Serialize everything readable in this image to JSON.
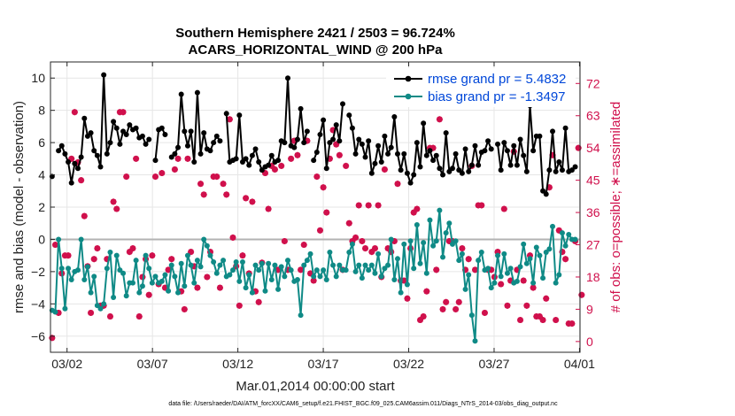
{
  "chart_data": {
    "type": "line",
    "title": [
      "Southern Hemisphere 2421 / 2503 = 96.724%",
      "ACARS_HORIZONTAL_WIND @ 200 hPa"
    ],
    "xlabel": "Mar.01,2014 00:00:00 start",
    "ylabel": "rmse and bias (model - observation)",
    "y2label": "# of obs: o=possible; ∗=assimilated",
    "footnote": "data file: /Users/raeder/DAI/ATM_forcXX/CAM6_setup/f.e21.FHIST_BGC.f09_025.CAM6assim.011/Diags_NTrS_2014-03/obs_diag_output.nc",
    "x_ticks": [
      {
        "label": "03/02",
        "x": 1
      },
      {
        "label": "03/07",
        "x": 6
      },
      {
        "label": "03/12",
        "x": 11
      },
      {
        "label": "03/17",
        "x": 16
      },
      {
        "label": "03/22",
        "x": 21
      },
      {
        "label": "03/27",
        "x": 26
      },
      {
        "label": "04/01",
        "x": 31
      }
    ],
    "xlim": [
      0.03,
      31.03
    ],
    "ylim": [
      -7,
      11
    ],
    "y_ticks": [
      -6,
      -4,
      -2,
      0,
      2,
      4,
      6,
      8,
      10
    ],
    "y_tick_labels": [
      "−6",
      "−4",
      "−2",
      "0",
      "2",
      "4",
      "6",
      "8",
      "10"
    ],
    "y2lim": [
      -3,
      78
    ],
    "y2_ticks": [
      0,
      9,
      18,
      27,
      36,
      45,
      54,
      63,
      72
    ],
    "y2_tick_labels": [
      "0",
      "9",
      "18",
      "27",
      "36",
      "45",
      "54",
      "63",
      "72"
    ],
    "zero_line": 0,
    "series": [
      {
        "name": "rmse",
        "legend": "rmse grand pr = 5.4832",
        "color": "#000000",
        "marker": "filled-circle",
        "y": [
          3.9,
          null,
          5.5,
          5.8,
          5.3,
          4.8,
          3.5,
          4.7,
          4.4,
          5.1,
          7.5,
          6.4,
          6.6,
          5.5,
          5.2,
          4.5,
          10.2,
          5.3,
          6.0,
          7.3,
          6.9,
          5.9,
          6.7,
          6.5,
          7.1,
          6.8,
          6.9,
          6.3,
          6.4,
          5.9,
          6.2,
          null,
          4.9,
          6.8,
          6.9,
          6.5,
          null,
          5.1,
          5.3,
          5.7,
          9.0,
          6.7,
          5.8,
          6.7,
          4.8,
          9.1,
          5.3,
          6.6,
          5.6,
          5.5,
          6.0,
          6.4,
          6.1,
          null,
          7.8,
          4.8,
          4.9,
          5.0,
          7.7,
          4.8,
          5.0,
          4.6,
          5.2,
          5.6,
          4.8,
          4.3,
          4.5,
          4.6,
          5.2,
          4.8,
          4.9,
          6.1,
          6.0,
          10.0,
          5.8,
          5.7,
          6.2,
          8.1,
          6.0,
          6.7,
          null,
          4.9,
          5.4,
          6.5,
          7.4,
          4.4,
          6.0,
          6.2,
          7.1,
          6.1,
          8.4,
          null,
          7.7,
          6.9,
          5.3,
          6.2,
          5.9,
          5.1,
          6.1,
          4.1,
          4.7,
          5.8,
          4.8,
          6.4,
          5.3,
          5.7,
          7.6,
          5.3,
          4.3,
          5.3,
          4.1,
          3.5,
          4.0,
          6.0,
          4.5,
          7.2,
          5.2,
          5.5,
          4.9,
          5.2,
          4.4,
          4.0,
          6.6,
          4.2,
          4.4,
          5.3,
          4.3,
          4.1,
          5.6,
          4.2,
          4.6,
          5.8,
          4.6,
          5.4,
          5.5,
          6.1,
          5.6,
          null,
          5.9,
          4.3,
          6.0,
          5.5,
          4.6,
          5.8,
          4.6,
          6.2,
          5.2,
          4.2,
          8.3,
          5.5,
          6.4,
          6.4,
          3.0,
          2.8,
          4.3,
          6.7,
          4.2,
          4.8,
          4.3,
          6.9,
          4.2,
          4.3,
          4.5,
          null
        ]
      },
      {
        "name": "bias",
        "legend": "bias grand pr = -1.3497",
        "color": "#0f8a86",
        "marker": "filled-circle",
        "y": [
          -4.4,
          -4.5,
          0.0,
          -1.8,
          -4.3,
          -1.8,
          -2.5,
          -2.0,
          -1.9,
          0.0,
          -2.5,
          -1.7,
          -3.3,
          -2.3,
          -4.1,
          -4.3,
          -4.0,
          -1.8,
          -0.8,
          -3.6,
          -1.0,
          -1.9,
          -2.1,
          -3.5,
          -2.7,
          -2.7,
          -1.3,
          -3.3,
          -2.9,
          -1.0,
          -1.8,
          -2.7,
          -2.3,
          -2.7,
          -2.6,
          -2.2,
          -3.2,
          -1.6,
          -2.3,
          -3.3,
          -1.5,
          -2.9,
          -1.0,
          -1.6,
          -2.7,
          -1.3,
          -1.7,
          0.0,
          -0.4,
          -1.0,
          -1.4,
          -2.1,
          -1.6,
          -1.3,
          -2.3,
          -2.2,
          -1.9,
          -1.4,
          -2.6,
          -1.4,
          -3.0,
          -2.2,
          -3.3,
          -1.6,
          -1.9,
          -1.5,
          -3.2,
          -1.5,
          -2.5,
          -1.6,
          -3.1,
          -1.7,
          -2.3,
          -1.3,
          -1.9,
          -2.6,
          -2.5,
          -4.7,
          -1.6,
          -1.3,
          -0.9,
          -2.3,
          -1.9,
          -2.3,
          -1.9,
          -2.5,
          -0.8,
          -1.6,
          -2.3,
          -1.6,
          -1.9,
          -1.9,
          -0.8,
          -0.3,
          -2.0,
          -1.6,
          -2.4,
          -1.6,
          -1.9,
          -1.6,
          -2.1,
          -0.9,
          -2.3,
          -1.8,
          -1.6,
          0.0,
          -2.5,
          -1.2,
          -3.3,
          -0.3,
          -2.8,
          -0.1,
          -1.8,
          0.9,
          -1.5,
          -0.2,
          -2.1,
          1.2,
          -0.4,
          -0.1,
          1.8,
          -1.1,
          0.4,
          1.0,
          -0.3,
          -0.1,
          -1.3,
          -0.9,
          -3.1,
          -2.2,
          -4.7,
          -6.3,
          -1.3,
          -0.8,
          -1.9,
          -1.8,
          -3.0,
          -2.7,
          -1.0,
          -2.3,
          -0.9,
          -2.1,
          -1.8,
          -2.7,
          -2.6,
          -1.7,
          -0.3,
          -1.5,
          -1.2,
          -2.7,
          -0.5,
          -1.0,
          -2.4,
          -0.8,
          -0.6,
          0.8,
          -2.7,
          -2.2,
          0.4,
          -0.4,
          0.3,
          0.0,
          0.0
        ]
      }
    ],
    "obs_possible": [
      1,
      27,
      8,
      19,
      24,
      24,
      51,
      64,
      50,
      45,
      35,
      21,
      8,
      23,
      26,
      10,
      10,
      23,
      7,
      39,
      37,
      64,
      64,
      46,
      25,
      26,
      51,
      7,
      18,
      23,
      13,
      24,
      46,
      16,
      47,
      15,
      20,
      23,
      48,
      51,
      14,
      9,
      51,
      25,
      21,
      15,
      44,
      41,
      18,
      25,
      46,
      46,
      15,
      44,
      41,
      62,
      29,
      21,
      10,
      24,
      40,
      19,
      39,
      14,
      11,
      22,
      47,
      37,
      49,
      48,
      20,
      49,
      28,
      20,
      51,
      56,
      52,
      20,
      27,
      56,
      19,
      17,
      46,
      31,
      43,
      36,
      51,
      59,
      55,
      52,
      20,
      49,
      33,
      28,
      29,
      38,
      28,
      26,
      38,
      25,
      26,
      38,
      18,
      48,
      26,
      25,
      28,
      44,
      17,
      17,
      12,
      26,
      36,
      37,
      6,
      7,
      14,
      54,
      54,
      20,
      62,
      9,
      11,
      28,
      28,
      9,
      11,
      26,
      20,
      23,
      49,
      20,
      38,
      38,
      8,
      20,
      20,
      18,
      25,
      16,
      37,
      10,
      17,
      53,
      20,
      6,
      17,
      10,
      24,
      15,
      7,
      7,
      6,
      12,
      43,
      52,
      6,
      31,
      25,
      23,
      5,
      5,
      28,
      54,
      13
    ]
  }
}
